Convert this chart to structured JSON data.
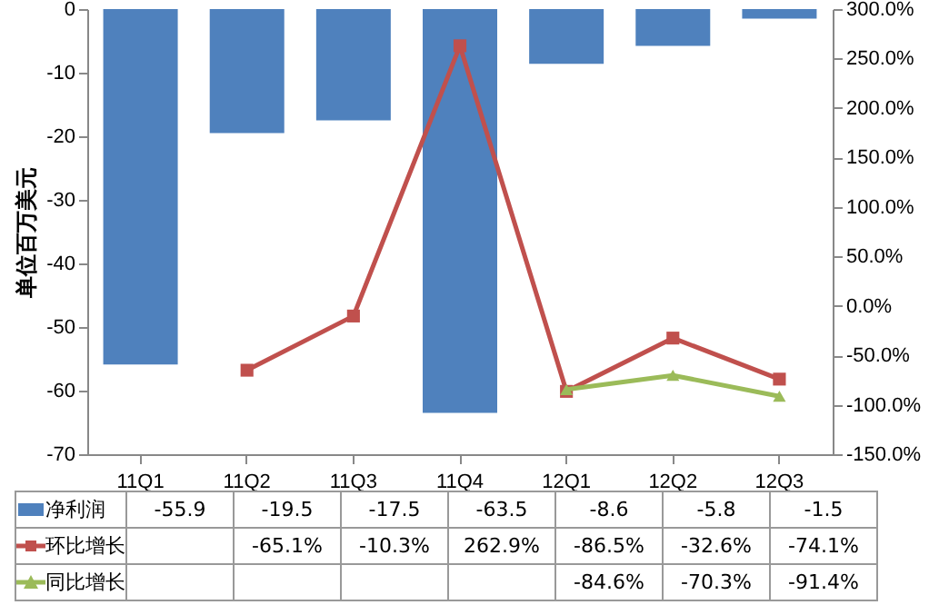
{
  "chart_data": {
    "type": "bar",
    "ylabel": "单位百万美元",
    "categories": [
      "11Q1",
      "11Q2",
      "11Q3",
      "11Q4",
      "12Q1",
      "12Q2",
      "12Q3"
    ],
    "ylim": [
      -70,
      0
    ],
    "yticks": [
      -70,
      -60,
      -50,
      -40,
      -30,
      -20,
      -10,
      0
    ],
    "y2lim": [
      -150,
      300
    ],
    "y2ticks": [
      {
        "value": -150,
        "label": "-150.0%"
      },
      {
        "value": -100,
        "label": "-100.0%"
      },
      {
        "value": -50,
        "label": "-50.0%"
      },
      {
        "value": 0,
        "label": "0.0%"
      },
      {
        "value": 50,
        "label": "50.0%"
      },
      {
        "value": 100,
        "label": "100.0%"
      },
      {
        "value": 150,
        "label": "150.0%"
      },
      {
        "value": 200,
        "label": "200.0%"
      },
      {
        "value": 250,
        "label": "250.0%"
      },
      {
        "value": 300,
        "label": "300.0%"
      }
    ],
    "legend": "bottom",
    "grid": false,
    "series": [
      {
        "name": "净利润",
        "color": "#4f81bd",
        "values": [
          -55.9,
          -19.5,
          -17.5,
          -63.5,
          -8.6,
          -5.8,
          -1.5
        ],
        "value_labels": [
          "-55.9",
          "-19.5",
          "-17.5",
          "-63.5",
          "-8.6",
          "-5.8",
          "-1.5"
        ]
      },
      {
        "name": "环比增长",
        "type": "line",
        "axis": "y2",
        "marker": "square",
        "color": "#c0504d",
        "values": [
          null,
          -65.1,
          -10.3,
          262.9,
          -86.5,
          -32.6,
          -74.1
        ],
        "value_labels": [
          null,
          "-65.1%",
          "-10.3%",
          "262.9%",
          "-86.5%",
          "-32.6%",
          "-74.1%"
        ]
      },
      {
        "name": "同比增长",
        "type": "line",
        "axis": "y2",
        "marker": "triangle",
        "color": "#9bbb59",
        "values": [
          null,
          null,
          null,
          null,
          -84.6,
          -70.3,
          -91.4
        ],
        "value_labels": [
          null,
          null,
          null,
          null,
          "-84.6%",
          "-70.3%",
          "-91.4%"
        ]
      }
    ]
  }
}
